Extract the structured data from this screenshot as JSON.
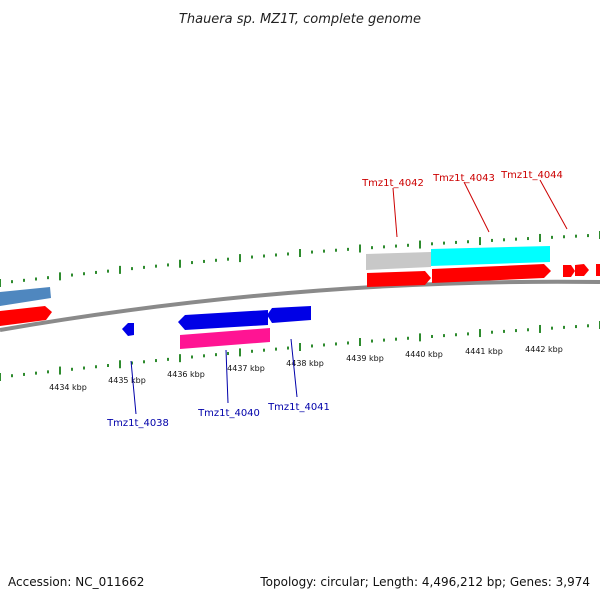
{
  "title": "Thauera sp. MZ1T, complete genome",
  "footer": {
    "accession": "Accession: NC_011662",
    "summary": "Topology: circular; Length: 4,496,212 bp; Genes: 3,974"
  },
  "colors": {
    "backbone": "#8a8a8a",
    "tick": "#2e8b2e",
    "forward_label": "#cc0000",
    "reverse_label": "#0000aa",
    "cds_forward": "#ff0000",
    "cds_reverse": "#0000e6",
    "rna": "#ff1493",
    "steelblue": "#4f87bf",
    "cyan": "#00ffff",
    "grey": "#c8c8c8"
  },
  "scale": {
    "unit": "kbp",
    "labels": [
      "4434 kbp",
      "4435 kbp",
      "4436 kbp",
      "4437 kbp",
      "4438 kbp",
      "4439 kbp",
      "4440 kbp",
      "4441 kbp",
      "4442 kbp"
    ]
  },
  "genes": {
    "forward": [
      "Tmz1t_4042",
      "Tmz1t_4043",
      "Tmz1t_4044"
    ],
    "reverse": [
      "Tmz1t_4038",
      "Tmz1t_4040",
      "Tmz1t_4041"
    ]
  }
}
